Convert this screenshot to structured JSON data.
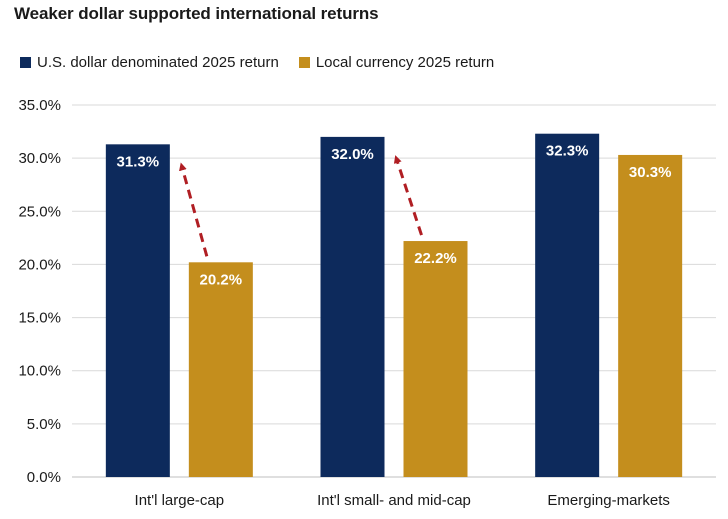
{
  "chart_data": {
    "type": "bar",
    "title": "Weaker dollar supported international returns",
    "categories": [
      "Int'l large-cap",
      "Int'l small- and mid-cap",
      "Emerging-markets"
    ],
    "series": [
      {
        "name": "U.S. dollar denominated 2025 return",
        "color": "#0d2a5c",
        "values": [
          31.3,
          32.0,
          32.3
        ],
        "labels": [
          "31.3%",
          "32.0%",
          "32.3%"
        ]
      },
      {
        "name": "Local currency 2025 return",
        "color": "#c48e1d",
        "values": [
          20.2,
          22.2,
          30.3
        ],
        "labels": [
          "20.2%",
          "22.2%",
          "30.3%"
        ]
      }
    ],
    "ylim": [
      0,
      35
    ],
    "yticks": [
      "0.0%",
      "5.0%",
      "10.0%",
      "15.0%",
      "20.0%",
      "25.0%",
      "30.0%",
      "35.0%"
    ],
    "ytick_values": [
      0,
      5,
      10,
      15,
      20,
      25,
      30,
      35
    ],
    "grid": true,
    "legend_position": "top-left",
    "annotations": [
      {
        "type": "dashed-arrow",
        "from_series": 1,
        "to_series": 0,
        "category_index": 0,
        "color": "#b01e23"
      },
      {
        "type": "dashed-arrow",
        "from_series": 1,
        "to_series": 0,
        "category_index": 1,
        "color": "#b01e23"
      }
    ]
  }
}
